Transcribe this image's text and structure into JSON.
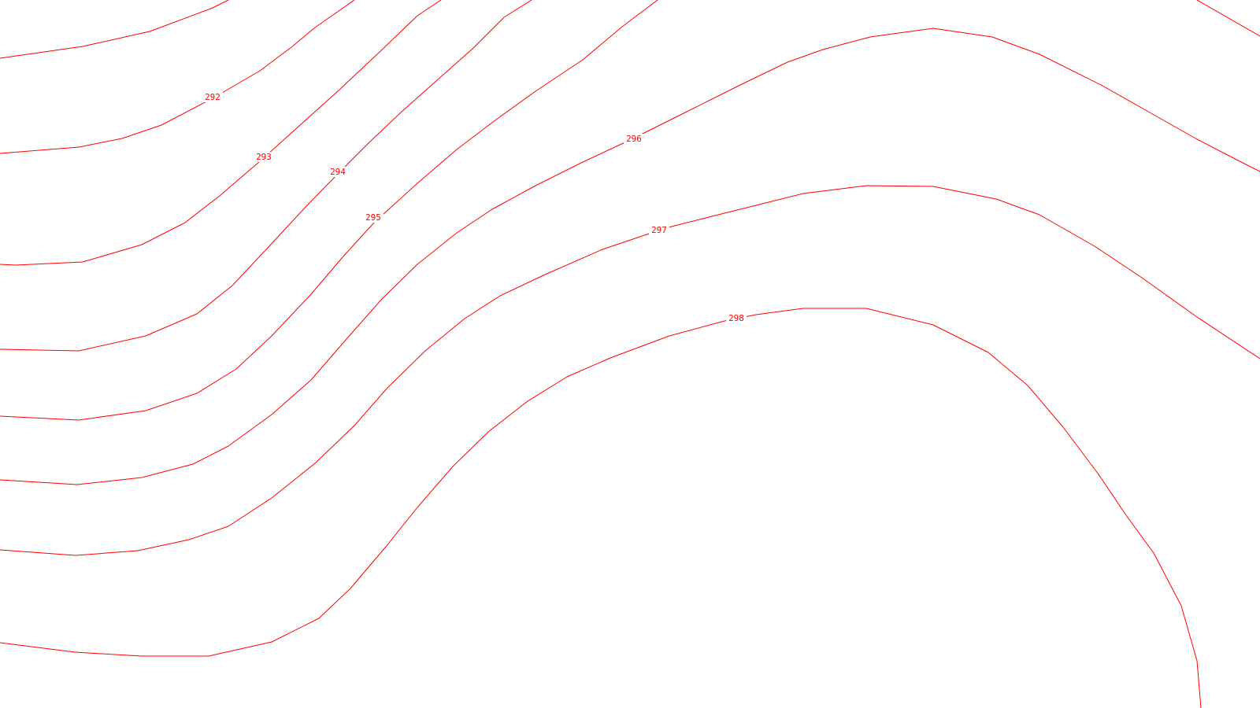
{
  "map": {
    "line_color": "#ff0000",
    "background_color": "#ffffff",
    "contour_labels": [
      "292",
      "293",
      "294",
      "295",
      "296",
      "297",
      "298"
    ]
  }
}
